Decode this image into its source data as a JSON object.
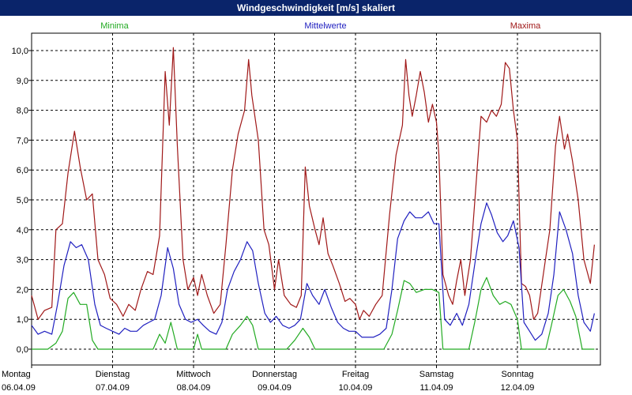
{
  "window": {
    "title": "Windgeschwindigkeit [m/s] skaliert"
  },
  "legend": [
    {
      "label": "Minima",
      "color": "#22aa22"
    },
    {
      "label": "Mittelwerte",
      "color": "#2020c0"
    },
    {
      "label": "Maxima",
      "color": "#a01818"
    }
  ],
  "chart_data": {
    "type": "line",
    "title": "Windgeschwindigkeit [m/s] skaliert",
    "xlabel": "",
    "ylabel": "",
    "ylim": [
      -0.5,
      11
    ],
    "y_ticks": [
      "0,0",
      "1,0",
      "2,0",
      "3,0",
      "4,0",
      "5,0",
      "6,0",
      "7,0",
      "8,0",
      "9,0",
      "10,0"
    ],
    "x_range": [
      0,
      7
    ],
    "x_unit": "days since Montag 06.04.09",
    "x_tick_labels": [
      {
        "day": "Montag",
        "date": "06.04.09"
      },
      {
        "day": "Dienstag",
        "date": "07.04.09"
      },
      {
        "day": "Mittwoch",
        "date": "08.04.09"
      },
      {
        "day": "Donnerstag",
        "date": "09.04.09"
      },
      {
        "day": "Freitag",
        "date": "10.04.09"
      },
      {
        "day": "Samstag",
        "date": "11.04.09"
      },
      {
        "day": "Sonntag",
        "date": "12.04.09"
      }
    ],
    "grid": true,
    "legend_position": "top",
    "series": [
      {
        "name": "Maxima",
        "color": "#a01818",
        "points": [
          [
            0,
            1.8
          ],
          [
            0.08,
            1.0
          ],
          [
            0.16,
            1.3
          ],
          [
            0.25,
            1.4
          ],
          [
            0.3,
            4.0
          ],
          [
            0.38,
            4.2
          ],
          [
            0.45,
            5.9
          ],
          [
            0.53,
            7.3
          ],
          [
            0.6,
            6.1
          ],
          [
            0.68,
            5.0
          ],
          [
            0.75,
            5.2
          ],
          [
            0.82,
            3.0
          ],
          [
            0.9,
            2.5
          ],
          [
            0.97,
            1.7
          ],
          [
            1.05,
            1.5
          ],
          [
            1.13,
            1.1
          ],
          [
            1.2,
            1.5
          ],
          [
            1.28,
            1.3
          ],
          [
            1.35,
            2.0
          ],
          [
            1.43,
            2.6
          ],
          [
            1.5,
            2.5
          ],
          [
            1.58,
            3.8
          ],
          [
            1.65,
            9.3
          ],
          [
            1.7,
            7.5
          ],
          [
            1.75,
            10.1
          ],
          [
            1.8,
            6.8
          ],
          [
            1.87,
            3.0
          ],
          [
            1.93,
            2.0
          ],
          [
            2.0,
            2.4
          ],
          [
            2.05,
            1.8
          ],
          [
            2.1,
            2.5
          ],
          [
            2.17,
            1.8
          ],
          [
            2.25,
            1.2
          ],
          [
            2.33,
            1.5
          ],
          [
            2.4,
            3.5
          ],
          [
            2.48,
            6.0
          ],
          [
            2.55,
            7.2
          ],
          [
            2.63,
            8.0
          ],
          [
            2.68,
            9.7
          ],
          [
            2.72,
            8.5
          ],
          [
            2.8,
            7.0
          ],
          [
            2.87,
            4.0
          ],
          [
            2.93,
            3.5
          ],
          [
            3.0,
            2.0
          ],
          [
            3.05,
            3.0
          ],
          [
            3.12,
            1.8
          ],
          [
            3.2,
            1.5
          ],
          [
            3.27,
            1.4
          ],
          [
            3.33,
            1.8
          ],
          [
            3.38,
            6.1
          ],
          [
            3.43,
            4.8
          ],
          [
            3.5,
            4.0
          ],
          [
            3.55,
            3.5
          ],
          [
            3.6,
            4.4
          ],
          [
            3.66,
            3.2
          ],
          [
            3.72,
            2.8
          ],
          [
            3.8,
            2.2
          ],
          [
            3.87,
            1.6
          ],
          [
            3.93,
            1.7
          ],
          [
            4.0,
            1.5
          ],
          [
            4.05,
            1.0
          ],
          [
            4.1,
            1.3
          ],
          [
            4.17,
            1.1
          ],
          [
            4.25,
            1.5
          ],
          [
            4.33,
            1.8
          ],
          [
            4.42,
            4.5
          ],
          [
            4.5,
            6.5
          ],
          [
            4.58,
            7.5
          ],
          [
            4.62,
            9.7
          ],
          [
            4.66,
            8.5
          ],
          [
            4.7,
            7.8
          ],
          [
            4.75,
            8.5
          ],
          [
            4.8,
            9.3
          ],
          [
            4.85,
            8.6
          ],
          [
            4.9,
            7.6
          ],
          [
            4.95,
            8.2
          ],
          [
            5.0,
            7.6
          ],
          [
            5.03,
            6.5
          ],
          [
            5.08,
            2.5
          ],
          [
            5.15,
            1.8
          ],
          [
            5.2,
            1.5
          ],
          [
            5.25,
            2.3
          ],
          [
            5.3,
            3.0
          ],
          [
            5.35,
            1.8
          ],
          [
            5.42,
            3.0
          ],
          [
            5.48,
            5.2
          ],
          [
            5.55,
            7.8
          ],
          [
            5.62,
            7.6
          ],
          [
            5.68,
            8.0
          ],
          [
            5.74,
            7.8
          ],
          [
            5.8,
            8.2
          ],
          [
            5.85,
            9.6
          ],
          [
            5.9,
            9.4
          ],
          [
            5.95,
            8.0
          ],
          [
            6.0,
            7.0
          ],
          [
            6.05,
            2.2
          ],
          [
            6.1,
            2.1
          ],
          [
            6.15,
            1.8
          ],
          [
            6.2,
            1.0
          ],
          [
            6.25,
            1.2
          ],
          [
            6.33,
            2.7
          ],
          [
            6.4,
            4.0
          ],
          [
            6.47,
            6.8
          ],
          [
            6.52,
            7.8
          ],
          [
            6.58,
            6.7
          ],
          [
            6.62,
            7.2
          ],
          [
            6.68,
            6.3
          ],
          [
            6.75,
            5.0
          ],
          [
            6.82,
            3.0
          ],
          [
            6.9,
            2.2
          ],
          [
            6.95,
            3.5
          ]
        ]
      },
      {
        "name": "Mittelwerte",
        "color": "#2020c0",
        "points": [
          [
            0,
            0.8
          ],
          [
            0.08,
            0.5
          ],
          [
            0.16,
            0.6
          ],
          [
            0.25,
            0.5
          ],
          [
            0.32,
            1.5
          ],
          [
            0.4,
            2.8
          ],
          [
            0.48,
            3.6
          ],
          [
            0.55,
            3.4
          ],
          [
            0.62,
            3.5
          ],
          [
            0.7,
            3.0
          ],
          [
            0.78,
            1.5
          ],
          [
            0.85,
            0.8
          ],
          [
            0.92,
            0.7
          ],
          [
            1.0,
            0.6
          ],
          [
            1.08,
            0.5
          ],
          [
            1.15,
            0.7
          ],
          [
            1.22,
            0.6
          ],
          [
            1.3,
            0.6
          ],
          [
            1.38,
            0.8
          ],
          [
            1.45,
            0.9
          ],
          [
            1.52,
            1.0
          ],
          [
            1.6,
            1.8
          ],
          [
            1.68,
            3.4
          ],
          [
            1.75,
            2.7
          ],
          [
            1.82,
            1.5
          ],
          [
            1.9,
            1.0
          ],
          [
            1.97,
            0.9
          ],
          [
            2.05,
            1.0
          ],
          [
            2.12,
            0.8
          ],
          [
            2.2,
            0.6
          ],
          [
            2.28,
            0.5
          ],
          [
            2.35,
            0.9
          ],
          [
            2.42,
            2.0
          ],
          [
            2.5,
            2.6
          ],
          [
            2.58,
            3.0
          ],
          [
            2.66,
            3.6
          ],
          [
            2.73,
            3.3
          ],
          [
            2.8,
            2.2
          ],
          [
            2.88,
            1.2
          ],
          [
            2.95,
            0.9
          ],
          [
            3.02,
            1.1
          ],
          [
            3.1,
            0.8
          ],
          [
            3.18,
            0.7
          ],
          [
            3.25,
            0.8
          ],
          [
            3.32,
            1.0
          ],
          [
            3.4,
            2.2
          ],
          [
            3.47,
            1.8
          ],
          [
            3.55,
            1.5
          ],
          [
            3.62,
            2.0
          ],
          [
            3.7,
            1.4
          ],
          [
            3.78,
            0.9
          ],
          [
            3.85,
            0.7
          ],
          [
            3.92,
            0.6
          ],
          [
            4.0,
            0.6
          ],
          [
            4.08,
            0.4
          ],
          [
            4.15,
            0.4
          ],
          [
            4.22,
            0.4
          ],
          [
            4.3,
            0.5
          ],
          [
            4.38,
            0.7
          ],
          [
            4.45,
            2.0
          ],
          [
            4.52,
            3.7
          ],
          [
            4.6,
            4.3
          ],
          [
            4.67,
            4.6
          ],
          [
            4.74,
            4.4
          ],
          [
            4.82,
            4.4
          ],
          [
            4.9,
            4.6
          ],
          [
            4.97,
            4.2
          ],
          [
            5.03,
            4.2
          ],
          [
            5.1,
            1.0
          ],
          [
            5.17,
            0.8
          ],
          [
            5.25,
            1.2
          ],
          [
            5.32,
            0.8
          ],
          [
            5.4,
            1.5
          ],
          [
            5.47,
            2.8
          ],
          [
            5.55,
            4.2
          ],
          [
            5.62,
            4.9
          ],
          [
            5.68,
            4.5
          ],
          [
            5.75,
            3.9
          ],
          [
            5.82,
            3.6
          ],
          [
            5.88,
            3.8
          ],
          [
            5.95,
            4.3
          ],
          [
            6.02,
            3.4
          ],
          [
            6.08,
            0.9
          ],
          [
            6.15,
            0.6
          ],
          [
            6.22,
            0.3
          ],
          [
            6.3,
            0.5
          ],
          [
            6.38,
            1.2
          ],
          [
            6.45,
            2.5
          ],
          [
            6.52,
            4.6
          ],
          [
            6.6,
            4.0
          ],
          [
            6.68,
            3.2
          ],
          [
            6.75,
            1.8
          ],
          [
            6.82,
            0.9
          ],
          [
            6.9,
            0.6
          ],
          [
            6.95,
            1.2
          ]
        ]
      },
      {
        "name": "Minima",
        "color": "#22aa22",
        "points": [
          [
            0,
            0.0
          ],
          [
            0.2,
            0.0
          ],
          [
            0.3,
            0.2
          ],
          [
            0.38,
            0.6
          ],
          [
            0.45,
            1.7
          ],
          [
            0.52,
            1.9
          ],
          [
            0.6,
            1.5
          ],
          [
            0.68,
            1.5
          ],
          [
            0.75,
            0.3
          ],
          [
            0.82,
            0.0
          ],
          [
            1.5,
            0.0
          ],
          [
            1.58,
            0.5
          ],
          [
            1.65,
            0.2
          ],
          [
            1.72,
            0.9
          ],
          [
            1.8,
            0.0
          ],
          [
            2.0,
            0.0
          ],
          [
            2.05,
            0.5
          ],
          [
            2.1,
            0.0
          ],
          [
            2.4,
            0.0
          ],
          [
            2.48,
            0.5
          ],
          [
            2.58,
            0.8
          ],
          [
            2.66,
            1.1
          ],
          [
            2.73,
            0.8
          ],
          [
            2.8,
            0.0
          ],
          [
            3.15,
            0.0
          ],
          [
            3.25,
            0.3
          ],
          [
            3.35,
            0.7
          ],
          [
            3.43,
            0.4
          ],
          [
            3.5,
            0.0
          ],
          [
            4.35,
            0.0
          ],
          [
            4.45,
            0.5
          ],
          [
            4.52,
            1.3
          ],
          [
            4.6,
            2.3
          ],
          [
            4.67,
            2.2
          ],
          [
            4.75,
            1.9
          ],
          [
            4.85,
            2.0
          ],
          [
            4.95,
            2.0
          ],
          [
            5.03,
            1.9
          ],
          [
            5.08,
            0.0
          ],
          [
            5.4,
            0.0
          ],
          [
            5.48,
            1.0
          ],
          [
            5.55,
            2.0
          ],
          [
            5.62,
            2.4
          ],
          [
            5.7,
            1.8
          ],
          [
            5.78,
            1.5
          ],
          [
            5.85,
            1.6
          ],
          [
            5.92,
            1.5
          ],
          [
            6.0,
            1.0
          ],
          [
            6.05,
            0.0
          ],
          [
            6.35,
            0.0
          ],
          [
            6.42,
            0.8
          ],
          [
            6.5,
            1.8
          ],
          [
            6.57,
            2.0
          ],
          [
            6.65,
            1.6
          ],
          [
            6.72,
            1.1
          ],
          [
            6.8,
            0.0
          ],
          [
            6.95,
            0.0
          ]
        ]
      }
    ]
  }
}
